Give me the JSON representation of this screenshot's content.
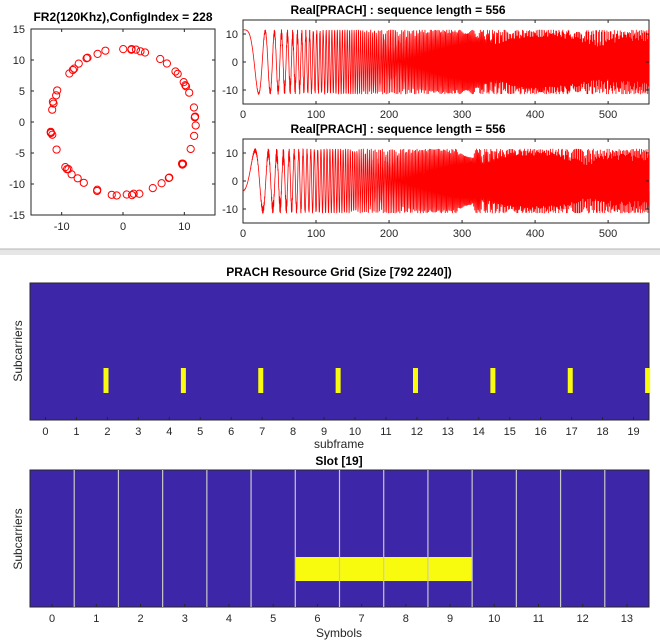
{
  "chart_data": [
    {
      "type": "scatter",
      "title": "FR2(120Khz),ConfigIndex = 228",
      "xlabel": "",
      "ylabel": "",
      "xlim": [
        -15,
        15
      ],
      "ylim": [
        -15,
        15
      ],
      "xticks": [
        "-10",
        "0",
        "10"
      ],
      "yticks": [
        "15",
        "10",
        "5",
        "0",
        "-5",
        "-10",
        "-15"
      ],
      "marker": "circle",
      "color": "#ff0000",
      "radius": 11.8,
      "point_count": 60,
      "grid": false
    },
    {
      "type": "line",
      "title": "Real[PRACH] : sequence length = 556",
      "xlabel": "",
      "ylabel": "",
      "xlim": [
        0,
        556
      ],
      "ylim": [
        -15,
        15
      ],
      "xticks": [
        "0",
        "100",
        "200",
        "300",
        "400",
        "500"
      ],
      "yticks": [
        "10",
        "0",
        "-10"
      ],
      "color": "#ff0000",
      "amplitude": 11.5,
      "grid": false
    },
    {
      "type": "line",
      "title": "Real[PRACH] : sequence length = 556",
      "xlabel": "",
      "ylabel": "",
      "xlim": [
        0,
        556
      ],
      "ylim": [
        -15,
        15
      ],
      "xticks": [
        "0",
        "100",
        "200",
        "300",
        "400",
        "500"
      ],
      "yticks": [
        "10",
        "0",
        "-10"
      ],
      "color": "#ff0000",
      "amplitude": 11.5,
      "grid": false
    },
    {
      "type": "heatmap",
      "title": "PRACH Resource Grid (Size [792 2240])",
      "xlabel": "subframe",
      "ylabel": "Subcarriers",
      "xlim": [
        -0.5,
        19.5
      ],
      "xticks": [
        "0",
        "1",
        "2",
        "3",
        "4",
        "5",
        "6",
        "7",
        "8",
        "9",
        "10",
        "11",
        "12",
        "13",
        "14",
        "15",
        "16",
        "17",
        "18",
        "19"
      ],
      "background_color": "#3d26a8",
      "highlight_color": "#f9fb0e",
      "prach_subframes": [
        1.875,
        4.375,
        6.875,
        9.375,
        11.875,
        14.375,
        16.875,
        19.375
      ],
      "grid": false
    },
    {
      "type": "heatmap",
      "title": "Slot [19]",
      "xlabel": "Symbols",
      "ylabel": "Subcarriers",
      "xlim": [
        -0.5,
        13.5
      ],
      "xticks": [
        "0",
        "1",
        "2",
        "3",
        "4",
        "5",
        "6",
        "7",
        "8",
        "9",
        "10",
        "11",
        "12",
        "13"
      ],
      "background_color": "#3d26a8",
      "highlight_color": "#f9fb0e",
      "symbol_boundary_color": "#c8c8c8",
      "prach_symbols": [
        6,
        7,
        8,
        9
      ],
      "grid": false
    }
  ]
}
